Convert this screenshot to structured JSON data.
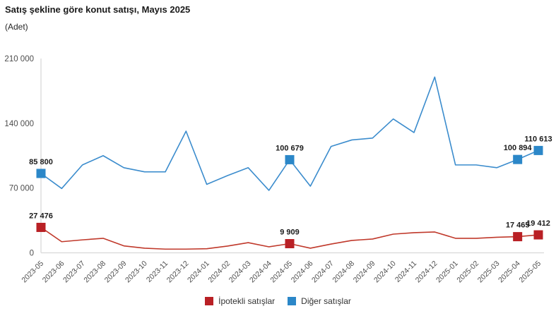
{
  "header": {
    "title": "Satış şekline göre konut satışı, Mayıs 2025",
    "subtitle": "(Adet)"
  },
  "legend": {
    "items": [
      {
        "label": "İpotekli satışlar",
        "color": "#b92025"
      },
      {
        "label": "Diğer satışlar",
        "color": "#2b87c8"
      }
    ]
  },
  "colors": {
    "axis_line": "#d9d9d9",
    "tick_text": "#4d4d4d",
    "data_label_text": "#1a1a1a",
    "ipotekli_line": "#c0392b",
    "ipotekli_marker": "#b92025",
    "diger_line": "#3b8ccd",
    "diger_marker": "#2b87c8"
  },
  "chart_data": {
    "type": "line",
    "title": "Satış şekline göre konut satışı, Mayıs 2025",
    "unit_label": "(Adet)",
    "grid": false,
    "legend_position": "bottom",
    "ylim": [
      0,
      210000
    ],
    "ytick_values": [
      0,
      70000,
      140000,
      210000
    ],
    "ytick_labels": [
      "0",
      "70 000",
      "140 000",
      "210 000"
    ],
    "categories": [
      "2023-05",
      "2023-06",
      "2023-07",
      "2023-08",
      "2023-09",
      "2023-10",
      "2023-11",
      "2023-12",
      "2024-01",
      "2024-02",
      "2024-03",
      "2024-04",
      "2024-05",
      "2024-06",
      "2024-07",
      "2024-08",
      "2024-09",
      "2024-10",
      "2024-11",
      "2024-12",
      "2025-01",
      "2025-02",
      "2025-03",
      "2025-04",
      "2025-05"
    ],
    "series": [
      {
        "name": "İpotekli satışlar",
        "line_color": "#c0392b",
        "marker_color": "#b92025",
        "values": [
          27476,
          12000,
          14000,
          15700,
          7500,
          5000,
          4000,
          4000,
          4400,
          7300,
          11000,
          6500,
          9909,
          5000,
          9500,
          13400,
          14900,
          20200,
          21800,
          22500,
          15700,
          15700,
          16800,
          17465,
          19412
        ],
        "labeled_points": [
          {
            "i": 0,
            "text": "27 476"
          },
          {
            "i": 12,
            "text": "9 909"
          },
          {
            "i": 23,
            "text": "17 465"
          },
          {
            "i": 24,
            "text": "19 412"
          }
        ]
      },
      {
        "name": "Diğer satışlar",
        "line_color": "#3b8ccd",
        "marker_color": "#2b87c8",
        "values": [
          85800,
          69500,
          95000,
          105000,
          92000,
          87500,
          87500,
          131500,
          74000,
          83500,
          92000,
          67500,
          100679,
          72000,
          115000,
          122000,
          124000,
          144700,
          130000,
          190000,
          95000,
          95000,
          92000,
          100894,
          110613
        ],
        "labeled_points": [
          {
            "i": 0,
            "text": "85 800"
          },
          {
            "i": 12,
            "text": "100 679"
          },
          {
            "i": 23,
            "text": "100 894"
          },
          {
            "i": 24,
            "text": "110 613"
          }
        ]
      }
    ]
  }
}
